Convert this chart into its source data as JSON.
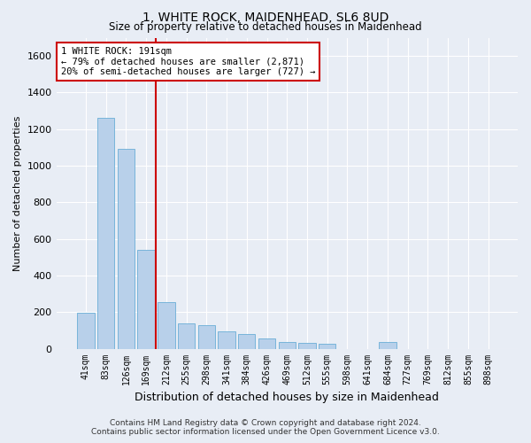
{
  "title": "1, WHITE ROCK, MAIDENHEAD, SL6 8UD",
  "subtitle": "Size of property relative to detached houses in Maidenhead",
  "xlabel": "Distribution of detached houses by size in Maidenhead",
  "ylabel": "Number of detached properties",
  "footer_line1": "Contains HM Land Registry data © Crown copyright and database right 2024.",
  "footer_line2": "Contains public sector information licensed under the Open Government Licence v3.0.",
  "categories": [
    "41sqm",
    "83sqm",
    "126sqm",
    "169sqm",
    "212sqm",
    "255sqm",
    "298sqm",
    "341sqm",
    "384sqm",
    "426sqm",
    "469sqm",
    "512sqm",
    "555sqm",
    "598sqm",
    "641sqm",
    "684sqm",
    "727sqm",
    "769sqm",
    "812sqm",
    "855sqm",
    "898sqm"
  ],
  "values": [
    195,
    1260,
    1090,
    540,
    255,
    140,
    130,
    95,
    80,
    55,
    35,
    30,
    25,
    0,
    0,
    35,
    0,
    0,
    0,
    0,
    0
  ],
  "bar_color": "#b8d0ea",
  "bar_edge_color": "#6aaed6",
  "bg_color": "#e8edf5",
  "grid_color": "#ffffff",
  "vline_color": "#cc0000",
  "vline_x_index": 3.5,
  "annotation_text": "1 WHITE ROCK: 191sqm\n← 79% of detached houses are smaller (2,871)\n20% of semi-detached houses are larger (727) →",
  "annotation_box_color": "#ffffff",
  "annotation_box_edge": "#cc0000",
  "ylim": [
    0,
    1700
  ],
  "yticks": [
    0,
    200,
    400,
    600,
    800,
    1000,
    1200,
    1400,
    1600
  ]
}
